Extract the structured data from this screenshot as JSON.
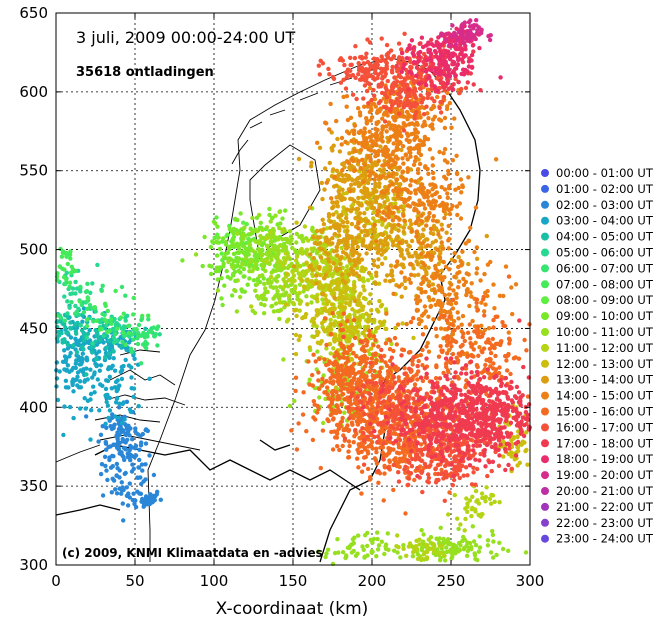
{
  "title": "3 juli, 2009     00:00-24:00 UT",
  "count_label": "35618 ontladingen",
  "copyright": "(c) 2009, KNMI Klimaatdata en -advies",
  "chart_data": {
    "type": "scatter",
    "xlabel": "X-coordinaat (km)",
    "ylabel": "",
    "xlim": [
      0,
      300
    ],
    "ylim": [
      300,
      650
    ],
    "x_ticks": [
      "0",
      "50",
      "100",
      "150",
      "200",
      "250",
      "300"
    ],
    "y_ticks": [
      "300",
      "350",
      "400",
      "450",
      "500",
      "550",
      "600",
      "650"
    ],
    "grid": true,
    "legend_position": "right",
    "series": [
      {
        "name": "00:00 - 01:00 UT",
        "color": "#4a4ae6",
        "clusters": []
      },
      {
        "name": "01:00 - 02:00 UT",
        "color": "#3a66e6",
        "clusters": []
      },
      {
        "name": "02:00 - 03:00 UT",
        "color": "#2a86d6",
        "clusters": [
          [
            45,
            365,
            8,
            14,
            110
          ],
          [
            55,
            342,
            6,
            3,
            35
          ],
          [
            40,
            385,
            6,
            8,
            50
          ]
        ]
      },
      {
        "name": "03:00 - 04:00 UT",
        "color": "#18a6c6",
        "clusters": [
          [
            15,
            430,
            10,
            14,
            160
          ],
          [
            35,
            440,
            10,
            6,
            60
          ],
          [
            40,
            410,
            8,
            12,
            60
          ]
        ]
      },
      {
        "name": "04:00 - 05:00 UT",
        "color": "#18c0a6",
        "clusters": [
          [
            5,
            450,
            6,
            6,
            40
          ],
          [
            25,
            445,
            10,
            6,
            50
          ]
        ]
      },
      {
        "name": "05:00 - 06:00 UT",
        "color": "#26d890",
        "clusters": [
          [
            10,
            470,
            8,
            10,
            40
          ],
          [
            40,
            450,
            12,
            6,
            50
          ]
        ]
      },
      {
        "name": "06:00 - 07:00 UT",
        "color": "#36e470",
        "clusters": [
          [
            55,
            445,
            6,
            6,
            40
          ],
          [
            20,
            470,
            10,
            8,
            30
          ]
        ]
      },
      {
        "name": "07:00 - 08:00 UT",
        "color": "#44ea58",
        "clusters": [
          [
            5,
            490,
            4,
            8,
            25
          ],
          [
            30,
            455,
            12,
            8,
            30
          ]
        ]
      },
      {
        "name": "08:00 - 09:00 UT",
        "color": "#5ef040",
        "clusters": [
          [
            115,
            505,
            8,
            8,
            40
          ]
        ]
      },
      {
        "name": "09:00 - 10:00 UT",
        "color": "#7ae82a",
        "clusters": [
          [
            125,
            500,
            12,
            12,
            150
          ],
          [
            110,
            490,
            10,
            8,
            60
          ]
        ]
      },
      {
        "name": "10:00 - 11:00 UT",
        "color": "#96e020",
        "clusters": [
          [
            145,
            495,
            15,
            12,
            220
          ],
          [
            250,
            310,
            16,
            5,
            120
          ],
          [
            180,
            415,
            12,
            12,
            80
          ],
          [
            140,
            470,
            10,
            6,
            60
          ],
          [
            190,
            310,
            10,
            5,
            50
          ]
        ]
      },
      {
        "name": "11:00 - 12:00 UT",
        "color": "#b4d414",
        "clusters": [
          [
            170,
            485,
            14,
            14,
            220
          ],
          [
            185,
            450,
            10,
            12,
            120
          ],
          [
            230,
            310,
            10,
            4,
            40
          ],
          [
            265,
            340,
            6,
            6,
            40
          ]
        ]
      },
      {
        "name": "12:00 - 13:00 UT",
        "color": "#ccbe0e",
        "clusters": [
          [
            180,
            460,
            14,
            16,
            240
          ],
          [
            200,
            520,
            12,
            14,
            150
          ],
          [
            290,
            380,
            5,
            10,
            60
          ]
        ]
      },
      {
        "name": "13:00 - 14:00 UT",
        "color": "#dc9e10",
        "clusters": [
          [
            195,
            545,
            14,
            14,
            260
          ],
          [
            185,
            500,
            12,
            12,
            170
          ],
          [
            225,
            500,
            16,
            14,
            180
          ]
        ]
      },
      {
        "name": "14:00 - 15:00 UT",
        "color": "#ec8016",
        "clusters": [
          [
            210,
            570,
            16,
            14,
            300
          ],
          [
            230,
            530,
            14,
            14,
            200
          ],
          [
            250,
            470,
            16,
            16,
            200
          ],
          [
            225,
            590,
            12,
            8,
            120
          ]
        ]
      },
      {
        "name": "15:00 - 16:00 UT",
        "color": "#f46a20",
        "clusters": [
          [
            200,
            405,
            20,
            18,
            520
          ],
          [
            220,
            380,
            16,
            14,
            260
          ],
          [
            185,
            420,
            10,
            14,
            140
          ],
          [
            265,
            430,
            18,
            16,
            200
          ]
        ]
      },
      {
        "name": "16:00 - 17:00 UT",
        "color": "#f5503a",
        "clusters": [
          [
            225,
            605,
            14,
            10,
            220
          ],
          [
            245,
            375,
            16,
            12,
            300
          ],
          [
            215,
            400,
            14,
            14,
            180
          ],
          [
            200,
            615,
            14,
            8,
            120
          ]
        ]
      },
      {
        "name": "17:00 - 18:00 UT",
        "color": "#f03a50",
        "clusters": [
          [
            255,
            395,
            20,
            14,
            480
          ],
          [
            280,
            395,
            10,
            10,
            160
          ],
          [
            245,
            615,
            10,
            8,
            100
          ]
        ]
      },
      {
        "name": "18:00 - 19:00 UT",
        "color": "#ea2c6a",
        "clusters": [
          [
            245,
            620,
            12,
            8,
            140
          ],
          [
            255,
            632,
            6,
            4,
            50
          ]
        ]
      },
      {
        "name": "19:00 - 20:00 UT",
        "color": "#d62c8c",
        "clusters": [
          [
            258,
            637,
            6,
            4,
            60
          ]
        ]
      },
      {
        "name": "20:00 - 21:00 UT",
        "color": "#bc30a6",
        "clusters": []
      },
      {
        "name": "21:00 - 22:00 UT",
        "color": "#a036bc",
        "clusters": []
      },
      {
        "name": "22:00 - 23:00 UT",
        "color": "#8640cc",
        "clusters": []
      },
      {
        "name": "23:00 - 24:00 UT",
        "color": "#6648dc",
        "clusters": []
      }
    ]
  }
}
